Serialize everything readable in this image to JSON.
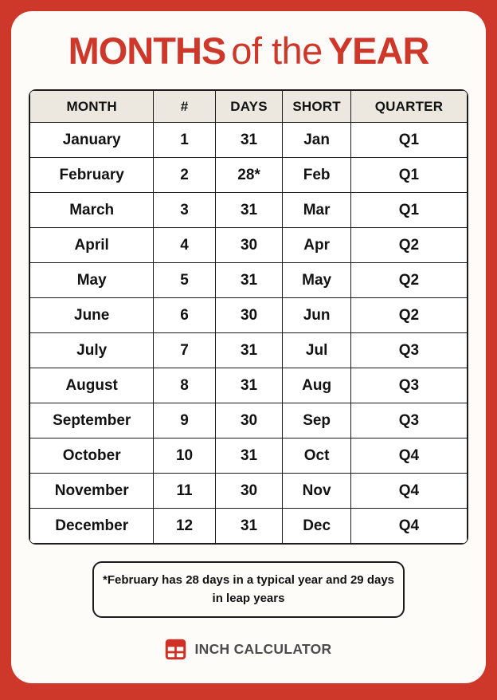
{
  "title": {
    "bold_left": "MONTHS",
    "middle": "of the",
    "bold_right": "YEAR"
  },
  "chart_data": {
    "type": "table",
    "title": "MONTHS of the YEAR",
    "columns": [
      "MONTH",
      "#",
      "DAYS",
      "SHORT",
      "QUARTER"
    ],
    "rows": [
      [
        "January",
        "1",
        "31",
        "Jan",
        "Q1"
      ],
      [
        "February",
        "2",
        "28*",
        "Feb",
        "Q1"
      ],
      [
        "March",
        "3",
        "31",
        "Mar",
        "Q1"
      ],
      [
        "April",
        "4",
        "30",
        "Apr",
        "Q2"
      ],
      [
        "May",
        "5",
        "31",
        "May",
        "Q2"
      ],
      [
        "June",
        "6",
        "30",
        "Jun",
        "Q2"
      ],
      [
        "July",
        "7",
        "31",
        "Jul",
        "Q3"
      ],
      [
        "August",
        "8",
        "31",
        "Aug",
        "Q3"
      ],
      [
        "September",
        "9",
        "30",
        "Sep",
        "Q3"
      ],
      [
        "October",
        "10",
        "31",
        "Oct",
        "Q4"
      ],
      [
        "November",
        "11",
        "30",
        "Nov",
        "Q4"
      ],
      [
        "December",
        "12",
        "31",
        "Dec",
        "Q4"
      ]
    ],
    "footnote": "*February has 28 days in a typical year and 29 days in leap years"
  },
  "footer": {
    "brand": "INCH CALCULATOR",
    "logo_icon": "calculator-table-icon"
  },
  "colors": {
    "accent_red": "#cd382b",
    "icon_red": "#ce3026",
    "table_header_bg": "#ece8e0",
    "table_border": "#1c1c1c",
    "card_bg": "#fdfcf9",
    "footer_text": "#4b4b4b"
  }
}
